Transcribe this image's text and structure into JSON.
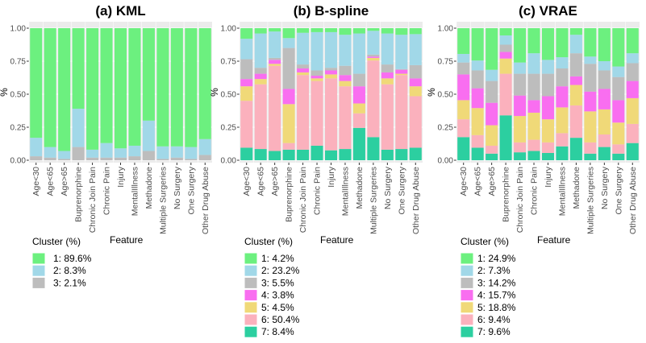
{
  "chart_data": [
    {
      "type": "bar",
      "stacked": true,
      "title": "(a) KML",
      "xlabel": "Feature",
      "ylabel": "%",
      "ylim": [
        0,
        1
      ],
      "yticks": [
        "0.00",
        "0.25",
        "0.50",
        "0.75",
        "1.00"
      ],
      "categories": [
        "Age<30",
        "Age<65",
        "Age>65",
        "Buprenorphine",
        "Chronic Join Pain",
        "Chronic Pain",
        "Injury",
        "MentalIllness",
        "Methadone",
        "Multiple Surgeries",
        "No Surgery",
        "One Surgery",
        "Other Drug Abuse"
      ],
      "legend_title": "Cluster (%)",
      "legend": [
        "1: 89.6%",
        "2: 8.3%",
        "3: 2.1%"
      ],
      "colors": [
        "#6cf07f",
        "#a1d8e8",
        "#bdbdbd"
      ],
      "stack_order_bottom_up": [
        3,
        2,
        1
      ],
      "cumulative_from_bottom": [
        [
          0.03,
          0.17
        ],
        [
          0.02,
          0.1
        ],
        [
          0.01,
          0.07
        ],
        [
          0.1,
          0.39
        ],
        [
          0.02,
          0.08
        ],
        [
          0.02,
          0.13
        ],
        [
          0.02,
          0.09
        ],
        [
          0.03,
          0.11
        ],
        [
          0.07,
          0.3
        ],
        [
          0.01,
          0.105
        ],
        [
          0.02,
          0.105
        ],
        [
          0.01,
          0.1
        ],
        [
          0.04,
          0.16
        ]
      ]
    },
    {
      "type": "bar",
      "stacked": true,
      "title": "(b) B-spline",
      "xlabel": "Feature",
      "ylabel": "%",
      "ylim": [
        0,
        1
      ],
      "yticks": [
        "0.00",
        "0.25",
        "0.50",
        "0.75",
        "1.00"
      ],
      "categories": [
        "Age<30",
        "Age<65",
        "Age>65",
        "Buprenorphine",
        "Chronic Join Pain",
        "Chronic Pain",
        "Injury",
        "MentalIllness",
        "Methadone",
        "Multiple Surgeries",
        "No Surgery",
        "One Surgery",
        "Other Drug Abuse"
      ],
      "legend_title": "Cluster (%)",
      "legend": [
        "1: 4.2%",
        "2: 23.2%",
        "3: 5.5%",
        "4: 3.8%",
        "5: 4.5%",
        "6: 50.4%",
        "7: 8.4%"
      ],
      "colors": [
        "#6cf07f",
        "#a1d8e8",
        "#bdbdbd",
        "#f96ef0",
        "#f0d978",
        "#fbb1bd",
        "#2ccfa0"
      ],
      "stack_order_bottom_up": [
        7,
        6,
        5,
        4,
        3,
        2,
        1
      ],
      "cumulative_from_bottom": [
        [
          0.095,
          0.45,
          0.56,
          0.615,
          0.765,
          0.92
        ],
        [
          0.085,
          0.575,
          0.615,
          0.655,
          0.7,
          0.96
        ],
        [
          0.07,
          0.715,
          0.73,
          0.76,
          0.775,
          0.975
        ],
        [
          0.08,
          0.13,
          0.425,
          0.54,
          0.85,
          0.925
        ],
        [
          0.08,
          0.645,
          0.665,
          0.695,
          0.725,
          0.965
        ],
        [
          0.11,
          0.6,
          0.62,
          0.64,
          0.68,
          0.97
        ],
        [
          0.075,
          0.62,
          0.65,
          0.68,
          0.7,
          0.97
        ],
        [
          0.085,
          0.56,
          0.6,
          0.645,
          0.715,
          0.95
        ],
        [
          0.245,
          0.355,
          0.43,
          0.56,
          0.655,
          0.96
        ],
        [
          0.175,
          0.755,
          0.775,
          0.785,
          0.8,
          0.98
        ],
        [
          0.08,
          0.575,
          0.62,
          0.665,
          0.725,
          0.96
        ],
        [
          0.085,
          0.645,
          0.655,
          0.685,
          0.69,
          0.95
        ],
        [
          0.095,
          0.485,
          0.56,
          0.62,
          0.72,
          0.955
        ]
      ]
    },
    {
      "type": "bar",
      "stacked": true,
      "title": "(c) VRAE",
      "xlabel": "Feature",
      "ylabel": "%",
      "ylim": [
        0,
        1
      ],
      "yticks": [
        "0.00",
        "0.25",
        "0.50",
        "0.75",
        "1.00"
      ],
      "categories": [
        "Age<30",
        "Age<65",
        "Age>65",
        "Buprenorphine",
        "Chronic Join Pain",
        "Chronic Pain",
        "Injury",
        "MentalIllness",
        "Methadone",
        "Multiple Surgeries",
        "No Surgery",
        "One Surgery",
        "Other Drug Abuse"
      ],
      "legend_title": "Cluster (%)",
      "legend": [
        "1: 24.9%",
        "2: 7.3%",
        "3: 14.2%",
        "4: 15.7%",
        "5: 18.8%",
        "6: 9.4%",
        "7: 9.6%"
      ],
      "colors": [
        "#6cf07f",
        "#a1d8e8",
        "#bdbdbd",
        "#f96ef0",
        "#f0d978",
        "#fbb1bd",
        "#2ccfa0"
      ],
      "stack_order_bottom_up": [
        7,
        6,
        5,
        4,
        3,
        2,
        1
      ],
      "cumulative_from_bottom": [
        [
          0.175,
          0.31,
          0.455,
          0.65,
          0.74,
          0.805
        ],
        [
          0.095,
          0.19,
          0.395,
          0.545,
          0.68,
          0.755
        ],
        [
          0.05,
          0.11,
          0.265,
          0.435,
          0.6,
          0.685
        ],
        [
          0.34,
          0.655,
          0.77,
          0.82,
          0.875,
          0.945
        ],
        [
          0.06,
          0.135,
          0.335,
          0.49,
          0.655,
          0.74
        ],
        [
          0.07,
          0.155,
          0.36,
          0.455,
          0.655,
          0.81
        ],
        [
          0.055,
          0.135,
          0.31,
          0.485,
          0.655,
          0.76
        ],
        [
          0.105,
          0.205,
          0.4,
          0.56,
          0.695,
          0.78
        ],
        [
          0.17,
          0.415,
          0.57,
          0.635,
          0.81,
          0.95
        ],
        [
          0.05,
          0.135,
          0.37,
          0.52,
          0.73,
          0.785
        ],
        [
          0.1,
          0.195,
          0.385,
          0.54,
          0.68,
          0.75
        ],
        [
          0.05,
          0.12,
          0.285,
          0.455,
          0.63,
          0.71
        ],
        [
          0.13,
          0.275,
          0.47,
          0.6,
          0.735,
          0.81
        ]
      ]
    }
  ]
}
